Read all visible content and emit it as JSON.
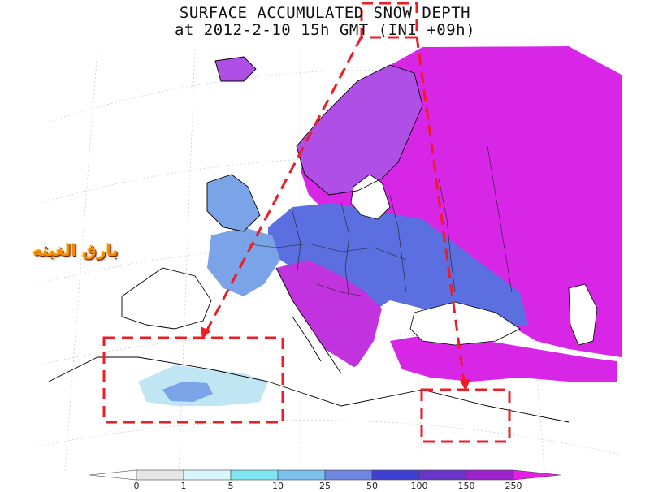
{
  "title": {
    "line1": "SURFACE ACCUMULATED SNOW DEPTH",
    "line2": "at 2012-2-10 15h GMT (INI +09h)"
  },
  "watermark": "بارق الغيثه",
  "legend": {
    "ticks": [
      "0",
      "1",
      "5",
      "10",
      "25",
      "50",
      "100",
      "150",
      "250"
    ],
    "colors": [
      "#ffffff",
      "#e6e6e6",
      "#d8f6fb",
      "#7fe6ef",
      "#7cc0ec",
      "#6f86df",
      "#3f3fd0",
      "#6a34c6",
      "#9a22c8",
      "#e61ee6"
    ]
  },
  "colors": {
    "heavy_snow": "#d826e6",
    "deep_snow": "#b04fe6",
    "medium_snow": "#5b6fe0",
    "light_snow": "#7aa3e8",
    "trace_snow": "#bfe6f2",
    "annotation": "#ee1c24"
  }
}
